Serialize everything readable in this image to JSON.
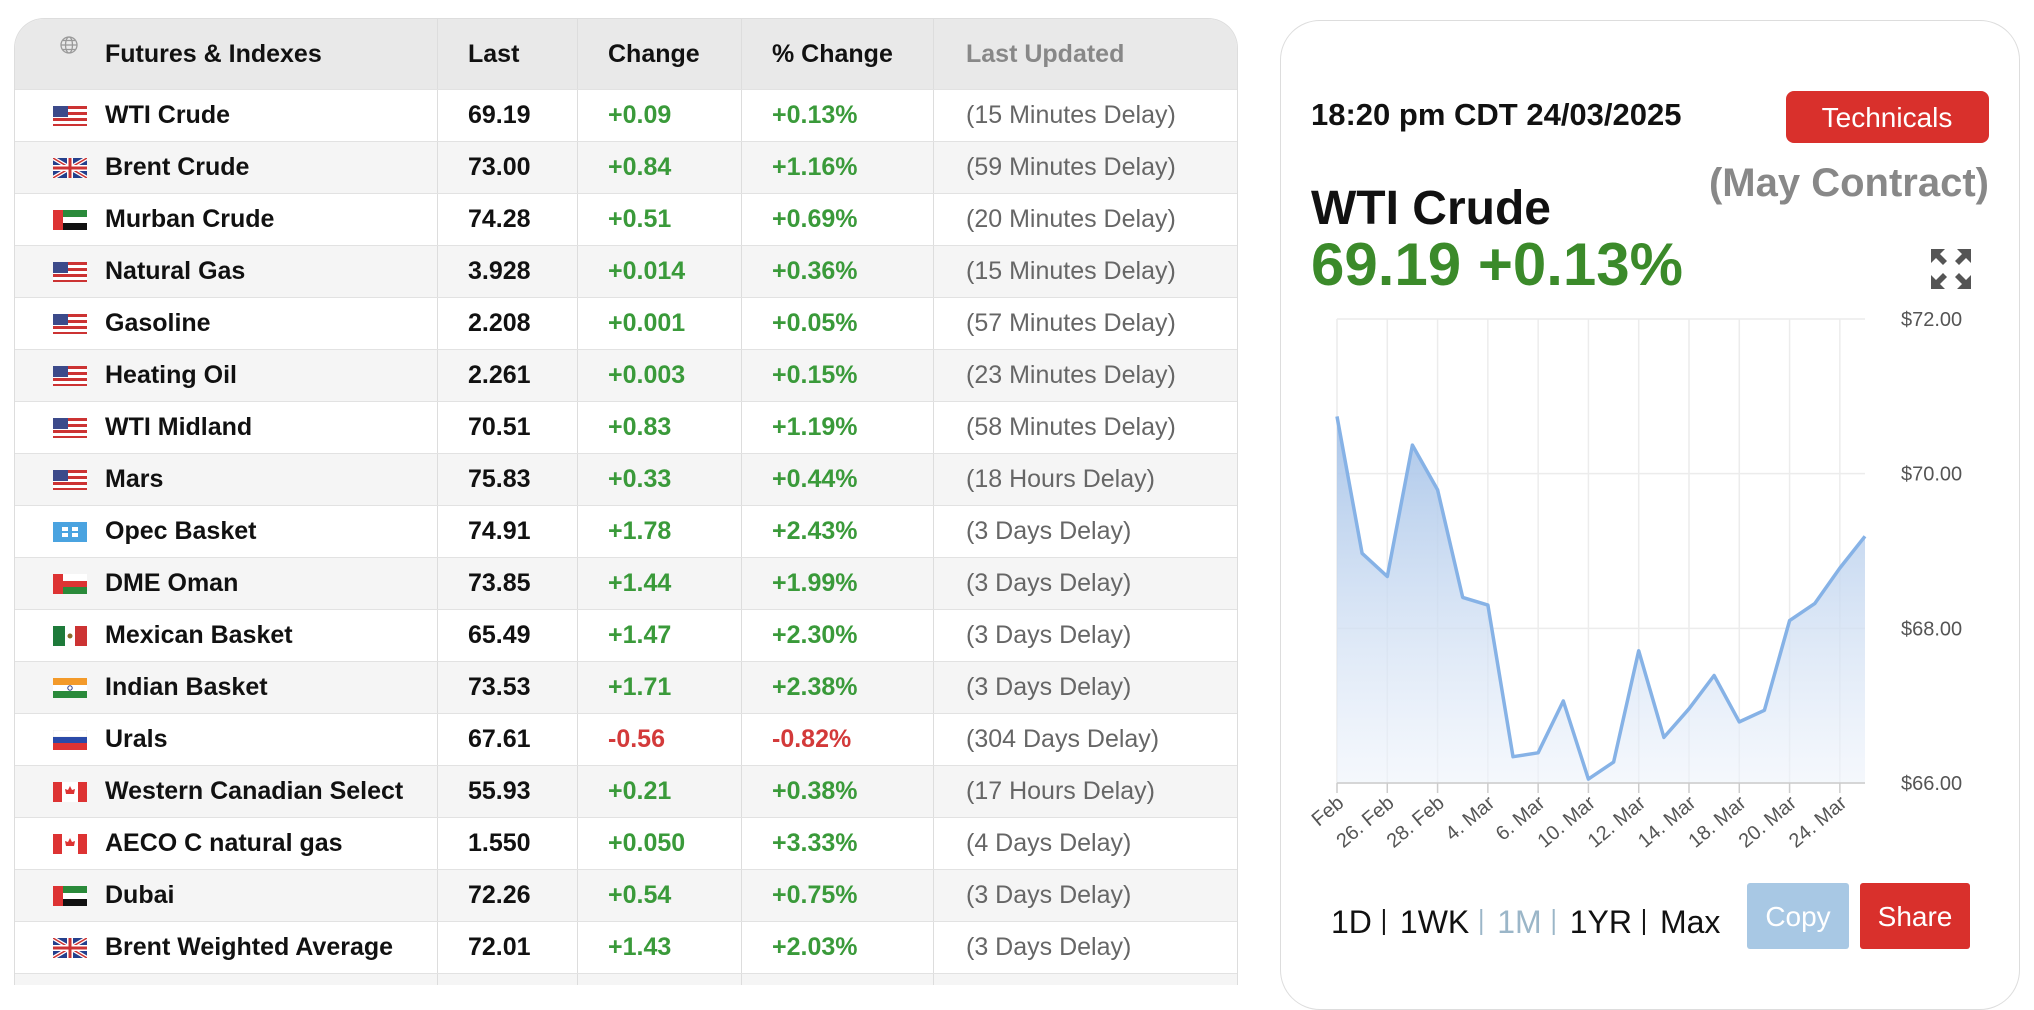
{
  "table": {
    "header": [
      "Futures & Indexes",
      "Last",
      "Change",
      "% Change",
      "Last Updated"
    ],
    "rows": [
      [
        "WTI Crude",
        "69.19",
        "+0.09",
        "+0.13%",
        "(15 Minutes Delay)"
      ],
      [
        "Brent Crude",
        "73.00",
        "+0.84",
        "+1.16%",
        "(59 Minutes Delay)"
      ],
      [
        "Murban Crude",
        "74.28",
        "+0.51",
        "+0.69%",
        "(20 Minutes Delay)"
      ],
      [
        "Natural Gas",
        "3.928",
        "+0.014",
        "+0.36%",
        "(15 Minutes Delay)"
      ],
      [
        "Gasoline",
        "2.208",
        "+0.001",
        "+0.05%",
        "(57 Minutes Delay)"
      ],
      [
        "Heating Oil",
        "2.261",
        "+0.003",
        "+0.15%",
        "(23 Minutes Delay)"
      ],
      [
        "WTI Midland",
        "70.51",
        "+0.83",
        "+1.19%",
        "(58 Minutes Delay)"
      ],
      [
        "Mars",
        "75.83",
        "+0.33",
        "+0.44%",
        "(18 Hours Delay)"
      ],
      [
        "Opec Basket",
        "74.91",
        "+1.78",
        "+2.43%",
        "(3 Days Delay)"
      ],
      [
        "DME Oman",
        "73.85",
        "+1.44",
        "+1.99%",
        "(3 Days Delay)"
      ],
      [
        "Mexican Basket",
        "65.49",
        "+1.47",
        "+2.30%",
        "(3 Days Delay)"
      ],
      [
        "Indian Basket",
        "73.53",
        "+1.71",
        "+2.38%",
        "(3 Days Delay)"
      ],
      [
        "Urals",
        "67.61",
        "-0.56",
        "-0.82%",
        "(304 Days Delay)"
      ],
      [
        "Western Canadian Select",
        "55.93",
        "+0.21",
        "+0.38%",
        "(17 Hours Delay)"
      ],
      [
        "AECO C natural gas",
        "1.550",
        "+0.050",
        "+3.33%",
        "(4 Days Delay)"
      ],
      [
        "Dubai",
        "72.26",
        "+0.54",
        "+0.75%",
        "(3 Days Delay)"
      ],
      [
        "Brent Weighted Average",
        "72.01",
        "+1.43",
        "+2.03%",
        "(3 Days Delay)"
      ]
    ]
  },
  "panel": {
    "timestamp": "18:20 pm CDT 24/03/2025",
    "technicals": "Technicals",
    "name": "WTI Crude",
    "contract": "(May Contract)",
    "price": "69.19",
    "change": "+0.13%",
    "ranges": [
      "1D",
      "1WK",
      "1M",
      "1YR",
      "Max"
    ],
    "copy": "Copy",
    "share": "Share"
  },
  "chart_data": {
    "type": "area",
    "categories": [
      "Feb",
      null,
      "26. Feb",
      null,
      "28. Feb",
      null,
      "4. Mar",
      null,
      "6. Mar",
      null,
      "10. Mar",
      null,
      "12. Mar",
      null,
      "14. Mar",
      null,
      "18. Mar",
      null,
      "20. Mar",
      null,
      "24. Mar",
      null
    ],
    "values": [
      70.74,
      68.97,
      68.67,
      70.37,
      69.79,
      68.4,
      68.3,
      66.34,
      66.39,
      67.06,
      66.05,
      66.27,
      67.71,
      66.59,
      66.96,
      67.39,
      66.79,
      66.94,
      68.1,
      68.32,
      68.78,
      69.19
    ],
    "color": "#86b2e6",
    "ylim": [
      66,
      72
    ],
    "yticks": [
      {
        "value": 66,
        "label": "$66.00"
      },
      {
        "value": 68,
        "label": "$68.00"
      },
      {
        "value": 70,
        "label": "$70.00"
      },
      {
        "value": 72,
        "label": "$72.00"
      }
    ],
    "grid": true
  }
}
